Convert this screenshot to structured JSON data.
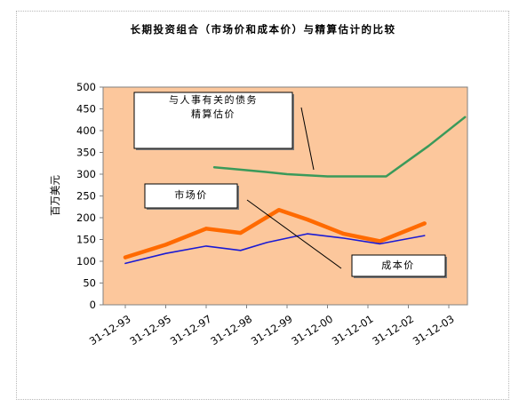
{
  "chart_data": {
    "type": "line",
    "title": "长期投资组合（市场价和成本价）与精算估计的比较",
    "xlabel": "",
    "ylabel": "百万美元",
    "ylim": [
      0,
      500
    ],
    "yticks": [
      "0",
      "50",
      "100",
      "150",
      "200",
      "250",
      "300",
      "350",
      "400",
      "450",
      "500"
    ],
    "categories": [
      "31-12-93",
      "31-12-95",
      "31-12-97",
      "31-12-98",
      "31-12-99",
      "31-12-00",
      "31-12-01",
      "31-12-02",
      "31-12-03"
    ],
    "grid": false,
    "series": [
      {
        "name": "与人事有关的债务 精算估价",
        "color": "#3a9a5a",
        "x": [
          2.2,
          3.5,
          4.0,
          5.0,
          6.0,
          6.45,
          7.5,
          8.4
        ],
        "values": [
          316,
          305,
          300,
          295,
          295,
          295,
          365,
          431
        ]
      },
      {
        "name": "市场价",
        "color": "#ff6a00",
        "x": [
          0.0,
          1.0,
          2.0,
          2.85,
          3.8,
          4.5,
          5.4,
          6.3,
          7.4
        ],
        "values": [
          109,
          138,
          175,
          165,
          218,
          196,
          163,
          146,
          187
        ]
      },
      {
        "name": "成本价",
        "color": "#1a1ad4",
        "x": [
          0.0,
          1.0,
          2.0,
          2.85,
          3.5,
          4.5,
          5.4,
          6.3,
          7.4
        ],
        "values": [
          95,
          118,
          135,
          125,
          143,
          163,
          153,
          140,
          159
        ]
      }
    ],
    "annotations": [
      {
        "lines": [
          "与人事有关的债务",
          "精算估价"
        ]
      },
      {
        "lines": [
          "市场价"
        ]
      },
      {
        "lines": [
          "成本价"
        ]
      }
    ],
    "colors": {
      "plot_bg": "#fcc79c",
      "axis": "#808080"
    }
  }
}
